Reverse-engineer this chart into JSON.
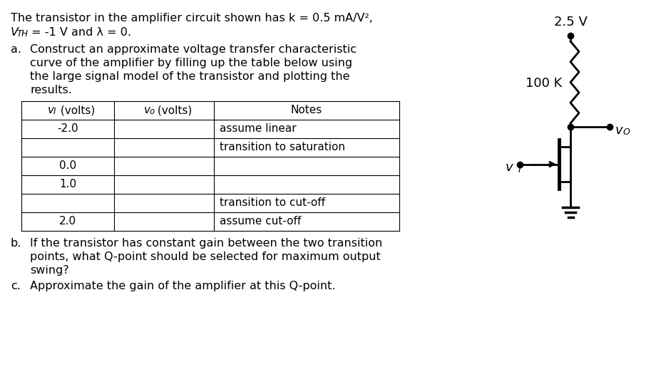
{
  "bg_color": "#ffffff",
  "title_line1": "The transistor in the amplifier circuit shown has k = 0.5 mA/V²,",
  "title_line2_v": "V",
  "title_line2_sub": "TH",
  "title_line2_rest": " = -1 V and λ = 0.",
  "item_a_label": "a.",
  "item_a_text1": "Construct an approximate voltage transfer characteristic",
  "item_a_text2": "curve of the amplifier by filling up the table below using",
  "item_a_text3": "the large signal model of the transistor and plotting the",
  "item_a_text4": "results.",
  "table_col1": [
    "-2.0",
    "",
    "0.0",
    "1.0",
    "",
    "2.0"
  ],
  "table_col3": [
    "assume linear",
    "transition to saturation",
    "",
    "",
    "transition to cut-off",
    "assume cut-off"
  ],
  "item_b_label": "b.",
  "item_b_text1": "If the transistor has constant gain between the two transition",
  "item_b_text2": "points, what Q-point should be selected for maximum output",
  "item_b_text3": "swing?",
  "item_c_label": "c.",
  "item_c_text": "Approximate the gain of the amplifier at this Q-point.",
  "circuit_vdd": "2.5 V",
  "circuit_r": "100 K",
  "font_size_main": 11.5,
  "font_size_table": 11.0,
  "font_size_circuit": 13.0
}
